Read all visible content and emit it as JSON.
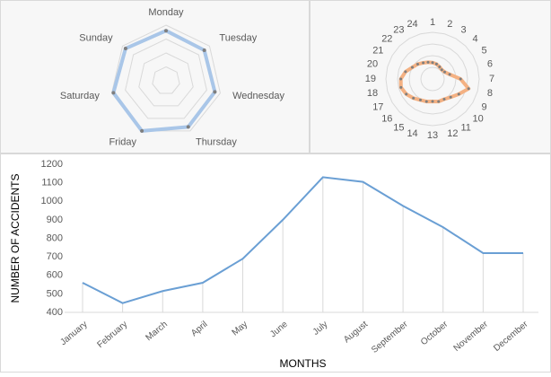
{
  "chart_data": [
    {
      "type": "radar",
      "categories": [
        "Monday",
        "Tuesday",
        "Wednesday",
        "Thursday",
        "Friday",
        "Saturday",
        "Sunday"
      ],
      "values": [
        0.9,
        0.88,
        0.9,
        0.92,
        1.0,
        0.97,
        0.93
      ],
      "ylim": [
        0,
        1
      ],
      "color": "#a9c6e8"
    },
    {
      "type": "radar",
      "categories": [
        "1",
        "2",
        "3",
        "4",
        "5",
        "6",
        "7",
        "8",
        "9",
        "10",
        "11",
        "12",
        "13",
        "14",
        "15",
        "16",
        "17",
        "18",
        "19",
        "20",
        "21",
        "22",
        "23",
        "24"
      ],
      "values": [
        0.35,
        0.33,
        0.3,
        0.28,
        0.3,
        0.38,
        0.6,
        0.8,
        0.65,
        0.55,
        0.5,
        0.5,
        0.48,
        0.5,
        0.52,
        0.58,
        0.65,
        0.7,
        0.68,
        0.6,
        0.5,
        0.45,
        0.4,
        0.37
      ],
      "ylim": [
        0,
        1
      ],
      "color": "#f4b183"
    },
    {
      "type": "line",
      "categories": [
        "January",
        "February",
        "March",
        "April",
        "May",
        "June",
        "July",
        "August",
        "September",
        "October",
        "November",
        "December"
      ],
      "values": [
        560,
        450,
        515,
        560,
        690,
        900,
        1130,
        1105,
        975,
        860,
        720,
        720
      ],
      "ylim": [
        400,
        1200
      ],
      "yticks": [
        400,
        500,
        600,
        700,
        800,
        900,
        1000,
        1100,
        1200
      ],
      "y_label": "NUMBER OF ACCIDENTS",
      "x_label": "MONTHS",
      "color": "#6a9fd4"
    }
  ]
}
